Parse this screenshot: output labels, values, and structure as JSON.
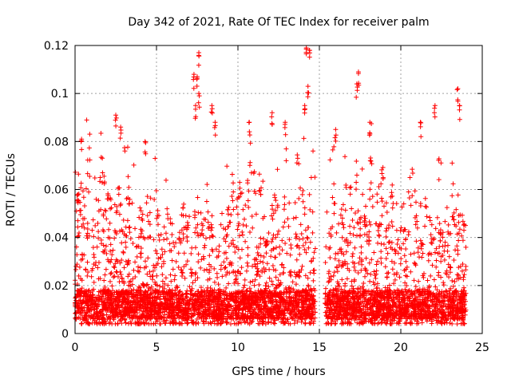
{
  "chart_data": {
    "type": "scatter",
    "title": "Day 342 of 2021, Rate Of TEC Index for receiver palm",
    "xlabel": "GPS time / hours",
    "ylabel": "ROTI / TECUs",
    "xlim": [
      0,
      25
    ],
    "ylim": [
      0,
      0.12
    ],
    "x_ticks": [
      0,
      5,
      10,
      15,
      20,
      25
    ],
    "y_ticks": [
      0,
      0.02,
      0.04,
      0.06,
      0.08,
      0.1,
      0.12
    ],
    "x_tick_labels": [
      "0",
      "5",
      "10",
      "15",
      "20",
      "25"
    ],
    "y_tick_labels": [
      "0",
      "0.02",
      "0.04",
      "0.06",
      "0.08",
      "0.1",
      "0.12"
    ],
    "grid": true,
    "marker": "+",
    "color": "#ff0000",
    "series": [
      {
        "name": "ROTI",
        "segments": [
          {
            "x_start": 0.0,
            "x_end": 14.75,
            "baseline": 0.012,
            "typical_max": 0.06
          },
          {
            "x_start": 15.35,
            "x_end": 24.0,
            "baseline": 0.012,
            "typical_max": 0.06
          }
        ],
        "notable_points": [
          {
            "x": 0.4,
            "y": 0.081
          },
          {
            "x": 2.5,
            "y": 0.091
          },
          {
            "x": 2.8,
            "y": 0.086
          },
          {
            "x": 4.3,
            "y": 0.08
          },
          {
            "x": 7.3,
            "y": 0.108
          },
          {
            "x": 7.5,
            "y": 0.107
          },
          {
            "x": 7.6,
            "y": 0.117
          },
          {
            "x": 7.4,
            "y": 0.095
          },
          {
            "x": 7.6,
            "y": 0.1
          },
          {
            "x": 8.4,
            "y": 0.095
          },
          {
            "x": 8.6,
            "y": 0.088
          },
          {
            "x": 10.7,
            "y": 0.088
          },
          {
            "x": 12.1,
            "y": 0.092
          },
          {
            "x": 12.9,
            "y": 0.088
          },
          {
            "x": 14.2,
            "y": 0.119
          },
          {
            "x": 14.4,
            "y": 0.118
          },
          {
            "x": 14.3,
            "y": 0.103
          },
          {
            "x": 14.1,
            "y": 0.095
          },
          {
            "x": 17.4,
            "y": 0.109
          },
          {
            "x": 17.3,
            "y": 0.104
          },
          {
            "x": 16.0,
            "y": 0.085
          },
          {
            "x": 18.1,
            "y": 0.088
          },
          {
            "x": 22.1,
            "y": 0.095
          },
          {
            "x": 23.5,
            "y": 0.102
          },
          {
            "x": 23.6,
            "y": 0.095
          },
          {
            "x": 21.2,
            "y": 0.088
          }
        ]
      }
    ]
  }
}
